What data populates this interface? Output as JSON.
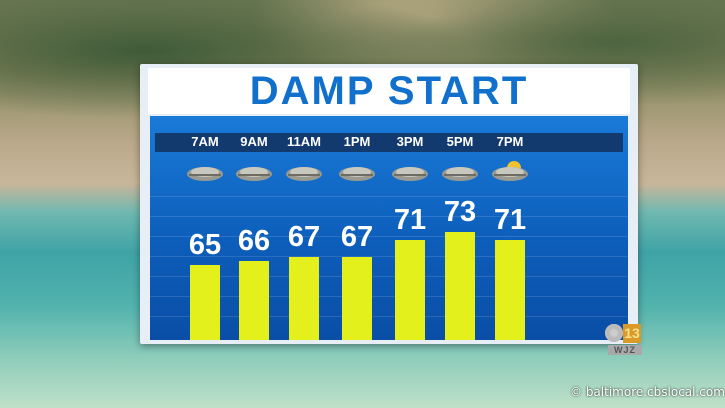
{
  "chart_data": {
    "type": "bar",
    "title": "DAMP START",
    "categories": [
      "7AM",
      "9AM",
      "11AM",
      "1PM",
      "3PM",
      "5PM",
      "7PM"
    ],
    "values": [
      65,
      66,
      67,
      67,
      71,
      73,
      71
    ],
    "icons": [
      "cloudy-icon",
      "cloudy-icon",
      "cloudy-icon",
      "cloudy-icon",
      "cloudy-icon",
      "cloudy-icon",
      "partly-sunny-icon"
    ],
    "colors": {
      "bar": "#e3f01c",
      "title": "#1170cc",
      "panel": "#0c5cb8"
    }
  },
  "branding": {
    "station": "WJZ",
    "channel": "13",
    "url": "© baltimore.cbslocal.com"
  }
}
